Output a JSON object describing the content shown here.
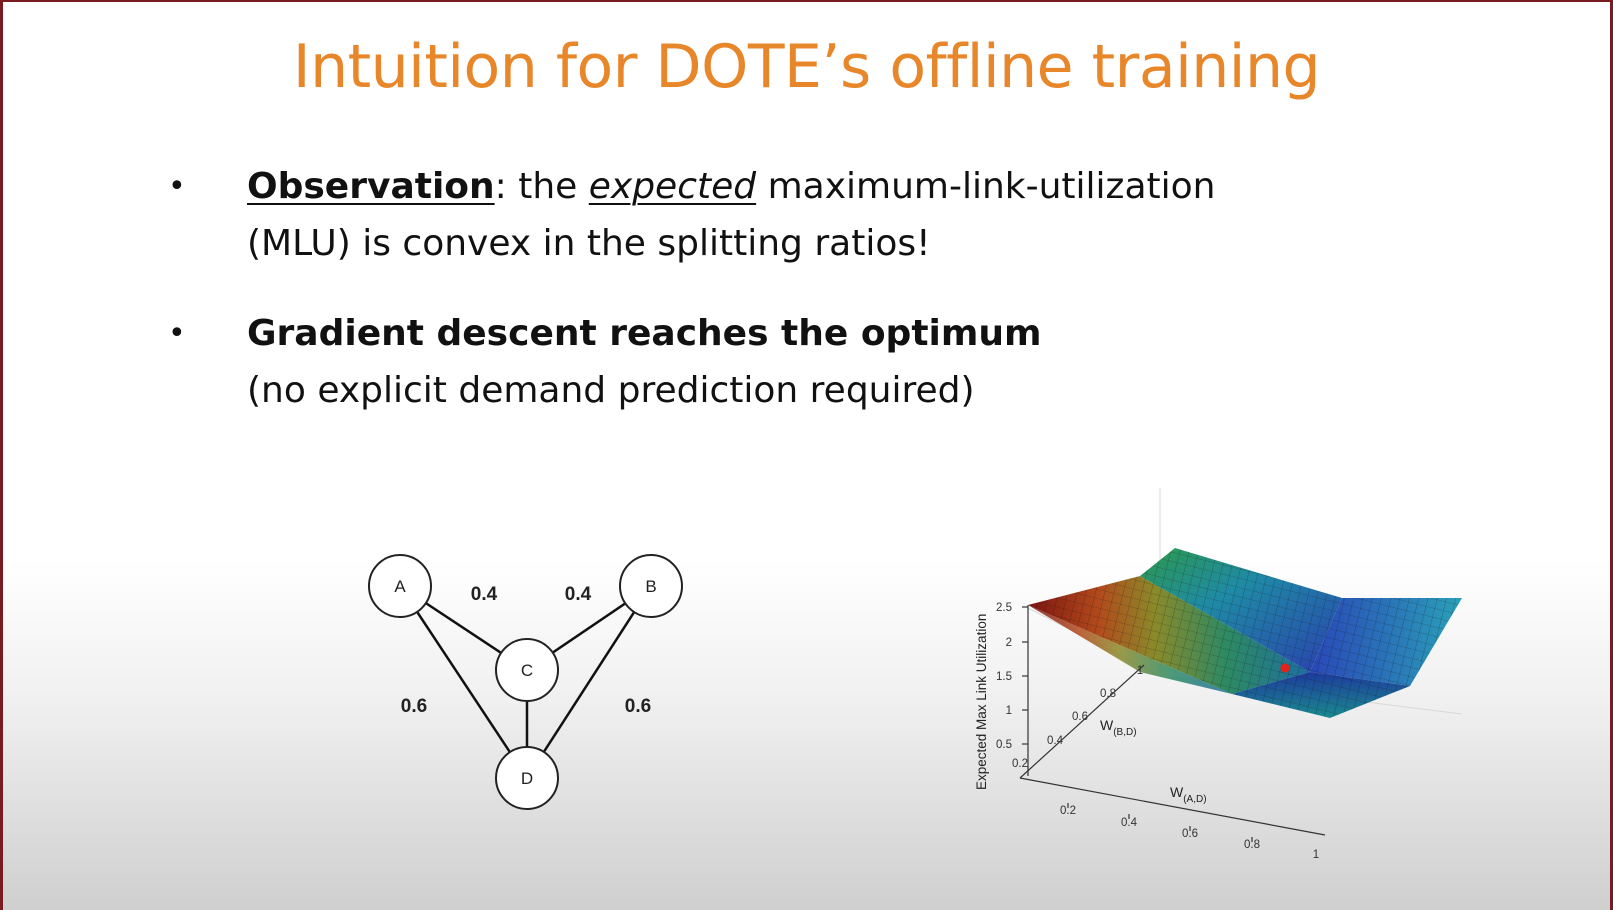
{
  "title": "Intuition for DOTE’s offline training",
  "bullets": [
    {
      "marker": "•",
      "lead": "Observation",
      "seg1": ": the ",
      "emph": "expected",
      "seg2": " maximum-link-utilization",
      "line2": "(MLU) is convex in the splitting ratios!"
    },
    {
      "marker": "•",
      "line1": "Gradient descent reaches the optimum",
      "line2": "(no explicit demand prediction required)"
    }
  ],
  "graph": {
    "nodes": [
      "A",
      "B",
      "C",
      "D"
    ],
    "edge_labels": {
      "a_c": "0.4",
      "b_c": "0.4",
      "a_d": "0.6",
      "b_d": "0.6"
    }
  },
  "surface_plot": {
    "zlabel": "Expected Max Link Utilization",
    "z_ticks": [
      "0.5",
      "1",
      "1.5",
      "2",
      "2.5"
    ],
    "y_ticks": [
      "0.2",
      "0.4",
      "0.6",
      "0.8",
      "1"
    ],
    "x_ticks": [
      "0.2",
      "0.4",
      "0.6",
      "0.8",
      "1"
    ],
    "ylabel_main": "W",
    "ylabel_sub": "(B,D)",
    "xlabel_main": "W",
    "xlabel_sub": "(A,D)",
    "colors": {
      "low": "#1a2a8a",
      "mid": "#1e8fb0",
      "high": "#5fbf3a",
      "peak": "#b3261e",
      "optimum_marker": "#e8201a"
    }
  }
}
